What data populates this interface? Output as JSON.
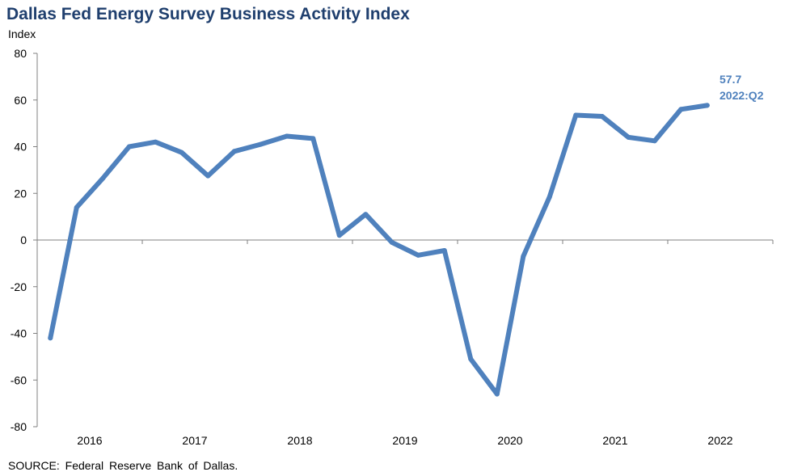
{
  "chart_data": {
    "type": "line",
    "title": "Dallas Fed Energy Survey Business Activity Index",
    "ylabel": "Index",
    "xlabel": "",
    "ylim": [
      -80,
      80
    ],
    "yticks": [
      80,
      60,
      40,
      20,
      0,
      -20,
      -40,
      -60,
      -80
    ],
    "xtick_labels": [
      "2016",
      "2017",
      "2018",
      "2019",
      "2020",
      "2021",
      "2022"
    ],
    "x_range": [
      "2016:Q1",
      "2022:Q4"
    ],
    "grid": false,
    "legend": "none",
    "series": [
      {
        "color": "#4f81bd",
        "x": [
          "2016:Q1",
          "2016:Q2",
          "2016:Q3",
          "2016:Q4",
          "2017:Q1",
          "2017:Q2",
          "2017:Q3",
          "2017:Q4",
          "2018:Q1",
          "2018:Q2",
          "2018:Q3",
          "2018:Q4",
          "2019:Q1",
          "2019:Q2",
          "2019:Q3",
          "2019:Q4",
          "2020:Q1",
          "2020:Q2",
          "2020:Q3",
          "2020:Q4",
          "2021:Q1",
          "2021:Q2",
          "2021:Q3",
          "2021:Q4",
          "2022:Q1",
          "2022:Q2"
        ],
        "values": [
          -42,
          14,
          26.5,
          40,
          42,
          37.5,
          27.5,
          38,
          41,
          44.5,
          43.5,
          2,
          11,
          -1,
          -6.5,
          -4.5,
          -51,
          -66,
          -7,
          18.5,
          53.5,
          53,
          44,
          42.5,
          56,
          57.7
        ]
      }
    ],
    "annotation": {
      "value": "57.7",
      "label": "2022:Q2"
    },
    "source": "SOURCE:  Federal Reserve  Bank of Dallas."
  }
}
